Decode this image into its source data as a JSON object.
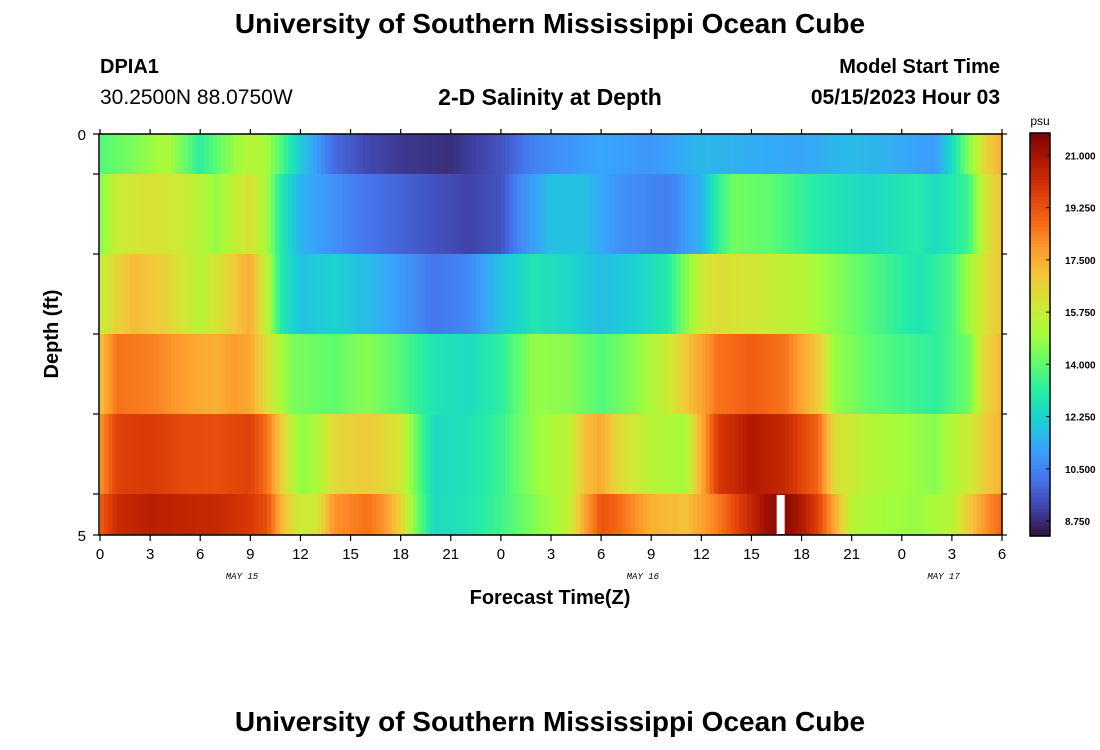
{
  "header": {
    "title": "University of Southern Mississippi Ocean Cube",
    "station_id": "DPIA1",
    "coords": "30.2500N  88.0750W",
    "subtitle": "2-D Salinity at Depth",
    "model_start_label": "Model Start Time",
    "model_start_value": "05/15/2023 Hour 03"
  },
  "footer": {
    "title": "University of Southern Mississippi Ocean Cube"
  },
  "colors": {
    "colormap": [
      "#30123b",
      "#4145ab",
      "#4675ed",
      "#39a2fc",
      "#1bcfd4",
      "#24eca6",
      "#61fc6c",
      "#a4fc3b",
      "#d1e834",
      "#f3c63a",
      "#fe9b2d",
      "#f36315",
      "#d93806",
      "#b11901",
      "#7a0402"
    ],
    "missing": "#ffffff"
  },
  "chart_data": {
    "type": "heatmap",
    "title": "",
    "xlabel": "Forecast Time(Z)",
    "ylabel": "Depth (ft)",
    "x_tick_labels": [
      "0",
      "3",
      "6",
      "9",
      "12",
      "15",
      "18",
      "21",
      "0",
      "3",
      "6",
      "9",
      "12",
      "15",
      "18",
      "21",
      "0",
      "3",
      "6"
    ],
    "x_day_labels": [
      "MAY 15",
      "MAY 16",
      "MAY 17"
    ],
    "y_tick_labels": [
      "0",
      "5"
    ],
    "ylim": [
      0,
      5
    ],
    "x_hours_range": [
      0,
      54
    ],
    "colorbar": {
      "unit": "psu",
      "range": [
        8.25,
        21.75
      ],
      "tick_labels": [
        "21.000",
        "19.250",
        "17.500",
        "15.750",
        "14.000",
        "12.250",
        "10.500",
        "8.750"
      ],
      "tick_values": [
        21.0,
        19.25,
        17.5,
        15.75,
        14.0,
        12.25,
        10.5,
        8.75
      ]
    },
    "depth_rows": [
      {
        "layer": 1,
        "anchors": [
          [
            0,
            13.8
          ],
          [
            2,
            14.4
          ],
          [
            4,
            15.2
          ],
          [
            6,
            13.2
          ],
          [
            8,
            14.8
          ],
          [
            9,
            15.4
          ],
          [
            10,
            15.0
          ],
          [
            11,
            13.5
          ],
          [
            12,
            12.0
          ],
          [
            13,
            11.0
          ],
          [
            14,
            10.0
          ],
          [
            16,
            9.3
          ],
          [
            18,
            9.0
          ],
          [
            21,
            8.8
          ],
          [
            24,
            9.5
          ],
          [
            26,
            10.5
          ],
          [
            30,
            11.2
          ],
          [
            33,
            10.9
          ],
          [
            36,
            11.6
          ],
          [
            39,
            11.4
          ],
          [
            42,
            11.2
          ],
          [
            45,
            11.7
          ],
          [
            48,
            11.3
          ],
          [
            50,
            11.0
          ],
          [
            51,
            12.5
          ],
          [
            52,
            14.5
          ],
          [
            53,
            16.5
          ],
          [
            54,
            17.5
          ]
        ]
      },
      {
        "layer": 2,
        "anchors": [
          [
            0,
            14.5
          ],
          [
            1,
            15.8
          ],
          [
            3,
            16.2
          ],
          [
            5,
            15.8
          ],
          [
            7,
            14.8
          ],
          [
            8,
            15.6
          ],
          [
            9,
            16.2
          ],
          [
            10,
            15.0
          ],
          [
            10.8,
            13.0
          ],
          [
            12,
            11.5
          ],
          [
            14,
            10.8
          ],
          [
            16,
            10.2
          ],
          [
            20,
            9.5
          ],
          [
            22,
            9.2
          ],
          [
            24,
            9.5
          ],
          [
            25,
            10.5
          ],
          [
            27,
            11.8
          ],
          [
            29,
            11.8
          ],
          [
            31,
            10.8
          ],
          [
            34,
            10.4
          ],
          [
            36,
            11.5
          ],
          [
            37,
            13.3
          ],
          [
            38,
            14.3
          ],
          [
            40,
            14.0
          ],
          [
            43,
            13.0
          ],
          [
            46,
            12.4
          ],
          [
            49,
            13.0
          ],
          [
            50,
            12.5
          ],
          [
            52,
            13.5
          ],
          [
            53,
            16.0
          ],
          [
            54,
            17.0
          ]
        ]
      },
      {
        "layer": 3,
        "anchors": [
          [
            0,
            15.8
          ],
          [
            2,
            17.2
          ],
          [
            4,
            16.6
          ],
          [
            6,
            15.4
          ],
          [
            8,
            16.8
          ],
          [
            9,
            17.5
          ],
          [
            10,
            15.5
          ],
          [
            10.8,
            13.0
          ],
          [
            12,
            11.8
          ],
          [
            14,
            12.2
          ],
          [
            16,
            11.7
          ],
          [
            18,
            11.0
          ],
          [
            20,
            10.2
          ],
          [
            22,
            10.6
          ],
          [
            24,
            11.8
          ],
          [
            26,
            12.8
          ],
          [
            28,
            12.4
          ],
          [
            30,
            11.7
          ],
          [
            32,
            12.2
          ],
          [
            34,
            13.0
          ],
          [
            36,
            15.8
          ],
          [
            37,
            16.3
          ],
          [
            40,
            15.8
          ],
          [
            42,
            15.4
          ],
          [
            45,
            14.2
          ],
          [
            47,
            13.5
          ],
          [
            49,
            12.8
          ],
          [
            51,
            13.6
          ],
          [
            53,
            16.2
          ],
          [
            54,
            17.0
          ]
        ]
      },
      {
        "layer": 4,
        "anchors": [
          [
            0,
            17.0
          ],
          [
            1,
            18.6
          ],
          [
            3,
            18.4
          ],
          [
            5,
            17.8
          ],
          [
            7,
            17.4
          ],
          [
            8,
            17.9
          ],
          [
            9,
            17.6
          ],
          [
            10.5,
            15.5
          ],
          [
            11.5,
            14.4
          ],
          [
            14,
            14.0
          ],
          [
            16,
            14.6
          ],
          [
            18,
            13.8
          ],
          [
            20,
            12.8
          ],
          [
            22,
            12.5
          ],
          [
            24,
            13.2
          ],
          [
            26,
            14.8
          ],
          [
            28,
            14.6
          ],
          [
            30,
            13.8
          ],
          [
            32,
            14.6
          ],
          [
            34,
            15.8
          ],
          [
            35,
            16.8
          ],
          [
            37,
            18.6
          ],
          [
            39,
            19.0
          ],
          [
            41,
            18.6
          ],
          [
            43,
            16.8
          ],
          [
            44,
            14.8
          ],
          [
            46,
            14.0
          ],
          [
            48,
            13.6
          ],
          [
            50,
            13.2
          ],
          [
            52,
            14.2
          ],
          [
            53,
            16.5
          ],
          [
            54,
            17.3
          ]
        ]
      },
      {
        "layer": 5,
        "anchors": [
          [
            0,
            18.0
          ],
          [
            1,
            19.6
          ],
          [
            3,
            19.8
          ],
          [
            5,
            19.4
          ],
          [
            7,
            19.3
          ],
          [
            9,
            19.6
          ],
          [
            10,
            18.6
          ],
          [
            11,
            16.4
          ],
          [
            12,
            14.7
          ],
          [
            13,
            15.2
          ],
          [
            14,
            16.4
          ],
          [
            16,
            16.8
          ],
          [
            18,
            16.0
          ],
          [
            19,
            14.0
          ],
          [
            20,
            12.5
          ],
          [
            22,
            12.7
          ],
          [
            24,
            13.4
          ],
          [
            26,
            14.8
          ],
          [
            28,
            15.4
          ],
          [
            29,
            17.0
          ],
          [
            30,
            17.6
          ],
          [
            31,
            16.4
          ],
          [
            33,
            15.4
          ],
          [
            35,
            15.0
          ],
          [
            36,
            17.5
          ],
          [
            37,
            19.8
          ],
          [
            39,
            20.8
          ],
          [
            41,
            20.3
          ],
          [
            43,
            18.8
          ],
          [
            44,
            16.2
          ],
          [
            46,
            15.4
          ],
          [
            48,
            15.0
          ],
          [
            50,
            14.6
          ],
          [
            52,
            15.8
          ],
          [
            53,
            16.8
          ],
          [
            54,
            17.4
          ]
        ]
      },
      {
        "layer": 6,
        "anchors": [
          [
            0,
            19.0
          ],
          [
            1,
            20.2
          ],
          [
            3,
            20.6
          ],
          [
            5,
            20.4
          ],
          [
            7,
            20.3
          ],
          [
            9,
            19.8
          ],
          [
            10,
            19.3
          ],
          [
            11,
            17.0
          ],
          [
            12,
            15.8
          ],
          [
            13,
            16.0
          ],
          [
            14,
            18.0
          ],
          [
            16,
            18.6
          ],
          [
            17,
            18.0
          ],
          [
            18,
            16.6
          ],
          [
            19,
            14.2
          ],
          [
            20,
            12.5
          ],
          [
            22,
            12.8
          ],
          [
            24,
            13.5
          ],
          [
            26,
            14.5
          ],
          [
            28,
            15.5
          ],
          [
            29,
            17.6
          ],
          [
            30,
            19.2
          ],
          [
            31,
            18.8
          ],
          [
            33,
            17.4
          ],
          [
            35,
            17.0
          ],
          [
            37,
            18.4
          ],
          [
            39,
            20.4
          ],
          [
            40,
            21.2
          ],
          [
            41,
            21.5
          ],
          [
            42,
            20.8
          ],
          [
            43,
            19.6
          ],
          [
            44,
            17.5
          ],
          [
            45,
            15.4
          ],
          [
            47,
            15.0
          ],
          [
            49,
            14.8
          ],
          [
            51,
            15.4
          ],
          [
            52,
            16.8
          ],
          [
            53,
            18.0
          ],
          [
            54,
            18.8
          ]
        ]
      }
    ],
    "missing_time_slots": [
      40.75
    ]
  }
}
